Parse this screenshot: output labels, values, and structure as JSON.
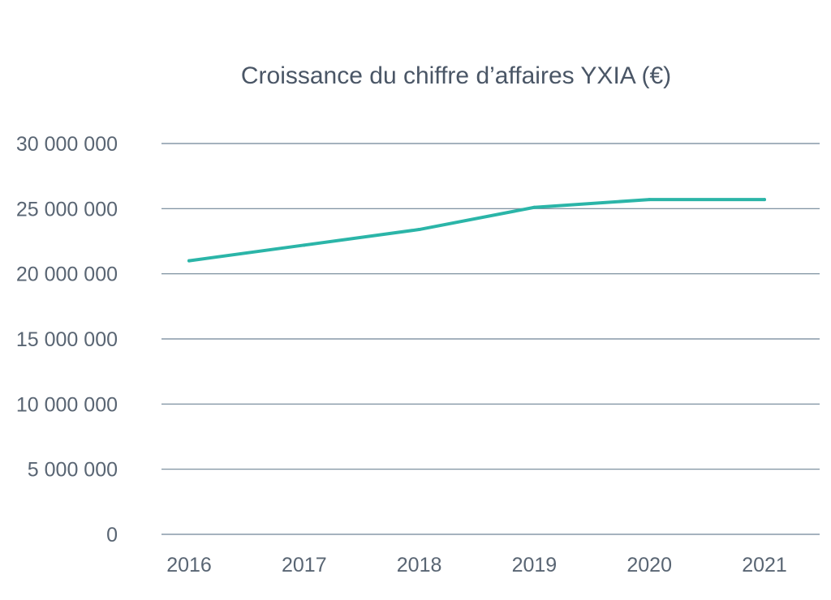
{
  "chart_data": {
    "type": "line",
    "title": "Croissance du chiffre d’affaires YXIA (€)",
    "xlabel": "",
    "ylabel": "",
    "categories": [
      "2016",
      "2017",
      "2018",
      "2019",
      "2020",
      "2021"
    ],
    "series": [
      {
        "values": [
          21000000,
          22200000,
          23400000,
          25100000,
          25700000,
          25700000
        ],
        "color": "#2bb5a8"
      }
    ],
    "ylim": [
      0,
      30000000
    ],
    "yticks": [
      0,
      5000000,
      10000000,
      15000000,
      20000000,
      25000000,
      30000000
    ],
    "ytick_labels": [
      "0",
      "5 000 000",
      "10 000 000",
      "15 000 000",
      "20 000 000",
      "25 000 000",
      "30 000 000"
    ],
    "grid": true,
    "legend": "none"
  }
}
